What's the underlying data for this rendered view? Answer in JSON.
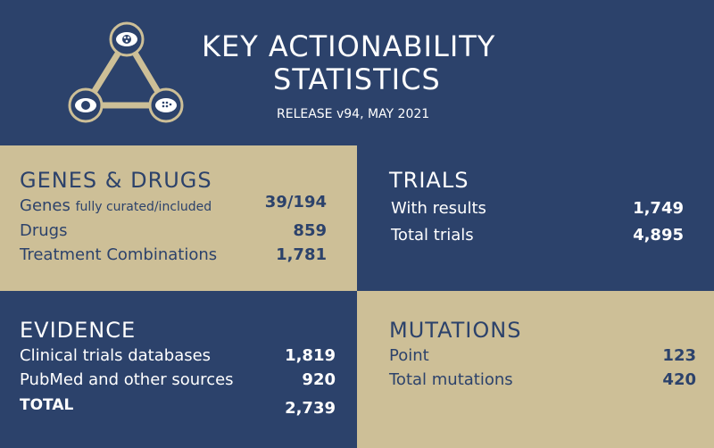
{
  "header": {
    "title_line1": "KEY ACTIONABILITY",
    "title_line2": "STATISTICS",
    "release": "RELEASE v94, MAY 2021",
    "colors": {
      "navy": "#2c426b",
      "tan": "#cdbf97",
      "white": "#ffffff"
    }
  },
  "logo": {
    "icon": "triangle-network-icon"
  },
  "genes_drugs": {
    "title": "GENES & DRUGS",
    "rows": [
      {
        "label": "Genes",
        "sublabel": "fully curated/included",
        "value": "39/194"
      },
      {
        "label": "Drugs",
        "value": "859"
      },
      {
        "label": "Treatment Combinations",
        "value": "1,781"
      }
    ]
  },
  "trials": {
    "title": "TRIALS",
    "rows": [
      {
        "label": "With results",
        "value": "1,749"
      },
      {
        "label": "Total trials",
        "value": "4,895"
      }
    ]
  },
  "evidence": {
    "title": "EVIDENCE",
    "rows": [
      {
        "label": "Clinical trials databases",
        "value": "1,819"
      },
      {
        "label": "PubMed and other sources",
        "value": "920"
      },
      {
        "label": "TOTAL",
        "value": "2,739"
      }
    ]
  },
  "mutations": {
    "title": "MUTATIONS",
    "rows": [
      {
        "label": "Point",
        "value": "123"
      },
      {
        "label": "Total mutations",
        "value": "420"
      }
    ]
  }
}
